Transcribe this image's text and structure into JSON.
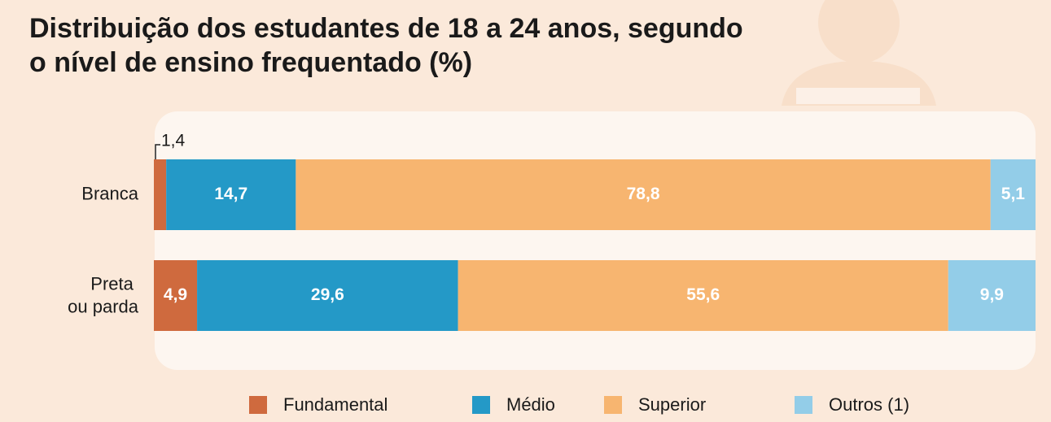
{
  "chart_data": {
    "type": "stacked-bar-horizontal",
    "title": "Distribuição dos estudantes de 18 a 24 anos, segundo o nível de ensino frequentado (%)",
    "categories": [
      "Branca",
      "Preta ou parda"
    ],
    "xlim": [
      0,
      100
    ],
    "series": [
      {
        "name": "Fundamental",
        "color": "#cf6a3e",
        "values": [
          1.4,
          4.9
        ],
        "value_labels": [
          "1,4",
          "4,9"
        ]
      },
      {
        "name": "Médio",
        "color": "#2499c7",
        "values": [
          14.7,
          29.6
        ],
        "value_labels": [
          "14,7",
          "29,6"
        ]
      },
      {
        "name": "Superior",
        "color": "#f7b570",
        "values": [
          78.8,
          55.6
        ],
        "value_labels": [
          "78,8",
          "55,6"
        ]
      },
      {
        "name": "Outros (1)",
        "color": "#93cde8",
        "values": [
          5.1,
          9.9
        ],
        "value_labels": [
          "5,1",
          "9,9"
        ]
      }
    ]
  }
}
